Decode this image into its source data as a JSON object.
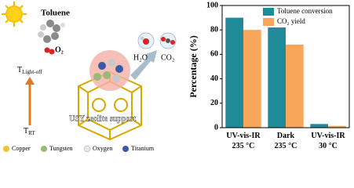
{
  "illustration": {
    "reactant": "Toluene",
    "oxidant": "O₂",
    "light_off_temperature": {
      "symbol": "T",
      "subscript": "Light-off"
    },
    "room_temperature": {
      "symbol": "T",
      "subscript": "RT"
    },
    "products": [
      "H₂O",
      "CO₂"
    ],
    "support": "USY zeolite support",
    "legend": [
      "Copper",
      "Tungsten",
      "Oxygen",
      "Titanium"
    ]
  },
  "chart_data": {
    "type": "bar",
    "categories": [
      "UV-vis-IR\n235 °C",
      "Dark\n235 °C",
      "UV-vis-IR\n30 °C"
    ],
    "series": [
      {
        "name": "Toluene conversion",
        "color": "#1f8a98",
        "values": [
          90,
          82,
          3
        ]
      },
      {
        "name": "CO₂ yield",
        "color": "#f7a65a",
        "values": [
          80,
          68,
          1.5
        ]
      }
    ],
    "ylabel": "Percentage (%)",
    "ylim": [
      0,
      100
    ],
    "yticks": [
      0,
      20,
      40,
      60,
      80,
      100
    ],
    "legend": "upper right"
  }
}
